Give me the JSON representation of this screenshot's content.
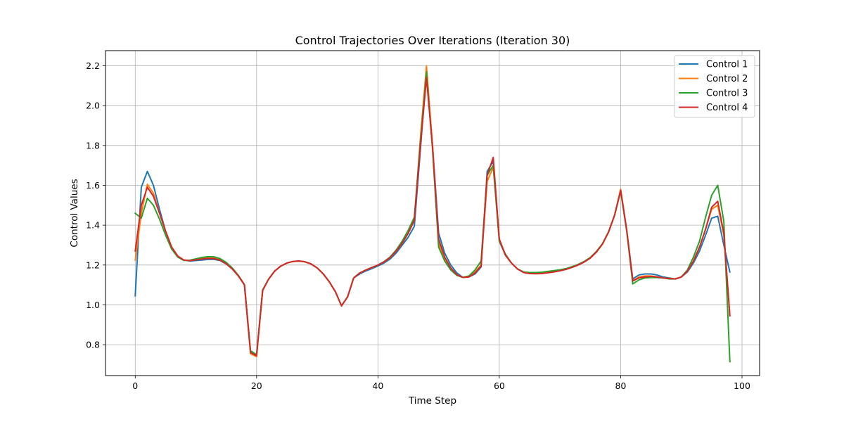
{
  "chart_data": {
    "type": "line",
    "title": "Control Trajectories Over Iterations (Iteration 30)",
    "xlabel": "Time Step",
    "ylabel": "Control Values",
    "xlim": [
      -4.9,
      102.9
    ],
    "ylim": [
      0.645,
      2.276
    ],
    "xticks": [
      0,
      20,
      40,
      60,
      80,
      100
    ],
    "yticks": [
      0.8,
      1.0,
      1.2,
      1.4,
      1.6,
      1.8,
      2.0,
      2.2
    ],
    "xtick_labels": [
      "0",
      "20",
      "40",
      "60",
      "80",
      "100"
    ],
    "ytick_labels": [
      "0.8",
      "1.0",
      "1.2",
      "1.4",
      "1.6",
      "1.8",
      "2.0",
      "2.2"
    ],
    "grid": true,
    "legend": "top-right",
    "series": [
      {
        "name": "Control 1",
        "color": "#1f77b4",
        "values": [
          1.045,
          1.59,
          1.67,
          1.6,
          1.48,
          1.37,
          1.29,
          1.245,
          1.225,
          1.22,
          1.222,
          1.225,
          1.228,
          1.228,
          1.222,
          1.205,
          1.18,
          1.145,
          1.1,
          0.765,
          0.75,
          1.075,
          1.13,
          1.17,
          1.195,
          1.21,
          1.218,
          1.22,
          1.216,
          1.205,
          1.185,
          1.155,
          1.115,
          1.065,
          0.995,
          1.04,
          1.135,
          1.155,
          1.17,
          1.182,
          1.195,
          1.21,
          1.23,
          1.26,
          1.3,
          1.34,
          1.395,
          1.78,
          2.17,
          1.8,
          1.36,
          1.26,
          1.2,
          1.16,
          1.138,
          1.14,
          1.155,
          1.19,
          1.67,
          1.72,
          1.32,
          1.25,
          1.21,
          1.18,
          1.165,
          1.16,
          1.16,
          1.162,
          1.165,
          1.168,
          1.173,
          1.18,
          1.19,
          1.2,
          1.215,
          1.235,
          1.265,
          1.305,
          1.365,
          1.45,
          1.575,
          1.375,
          1.13,
          1.15,
          1.155,
          1.155,
          1.15,
          1.14,
          1.135,
          1.13,
          1.14,
          1.165,
          1.21,
          1.27,
          1.35,
          1.435,
          1.445,
          1.3,
          1.165
        ]
      },
      {
        "name": "Control 2",
        "color": "#ff7f0e",
        "values": [
          1.225,
          1.46,
          1.605,
          1.56,
          1.46,
          1.37,
          1.29,
          1.245,
          1.225,
          1.222,
          1.227,
          1.232,
          1.236,
          1.235,
          1.226,
          1.208,
          1.18,
          1.145,
          1.1,
          0.755,
          0.74,
          1.072,
          1.13,
          1.17,
          1.195,
          1.21,
          1.218,
          1.22,
          1.216,
          1.205,
          1.185,
          1.155,
          1.115,
          1.065,
          0.995,
          1.04,
          1.135,
          1.16,
          1.175,
          1.187,
          1.2,
          1.215,
          1.237,
          1.27,
          1.31,
          1.36,
          1.425,
          1.84,
          2.2,
          1.8,
          1.31,
          1.23,
          1.18,
          1.15,
          1.138,
          1.14,
          1.165,
          1.2,
          1.62,
          1.69,
          1.33,
          1.25,
          1.21,
          1.18,
          1.163,
          1.158,
          1.157,
          1.158,
          1.162,
          1.166,
          1.172,
          1.18,
          1.19,
          1.2,
          1.215,
          1.235,
          1.265,
          1.305,
          1.365,
          1.45,
          1.58,
          1.375,
          1.12,
          1.14,
          1.145,
          1.145,
          1.14,
          1.135,
          1.132,
          1.13,
          1.14,
          1.17,
          1.22,
          1.29,
          1.38,
          1.48,
          1.5,
          1.35,
          0.95
        ]
      },
      {
        "name": "Control 3",
        "color": "#2ca02c",
        "values": [
          1.46,
          1.435,
          1.535,
          1.5,
          1.43,
          1.35,
          1.28,
          1.24,
          1.223,
          1.224,
          1.231,
          1.238,
          1.242,
          1.241,
          1.232,
          1.213,
          1.185,
          1.148,
          1.102,
          0.77,
          0.75,
          1.075,
          1.13,
          1.17,
          1.195,
          1.21,
          1.218,
          1.22,
          1.216,
          1.205,
          1.185,
          1.155,
          1.115,
          1.065,
          0.995,
          1.04,
          1.135,
          1.16,
          1.175,
          1.188,
          1.2,
          1.217,
          1.24,
          1.275,
          1.32,
          1.375,
          1.44,
          1.82,
          2.17,
          1.78,
          1.29,
          1.22,
          1.175,
          1.148,
          1.138,
          1.145,
          1.175,
          1.22,
          1.65,
          1.7,
          1.32,
          1.255,
          1.21,
          1.18,
          1.165,
          1.162,
          1.162,
          1.164,
          1.168,
          1.172,
          1.176,
          1.182,
          1.192,
          1.203,
          1.218,
          1.238,
          1.268,
          1.307,
          1.366,
          1.45,
          1.57,
          1.37,
          1.105,
          1.125,
          1.135,
          1.137,
          1.137,
          1.135,
          1.13,
          1.13,
          1.14,
          1.175,
          1.24,
          1.32,
          1.44,
          1.55,
          1.6,
          1.42,
          0.715
        ]
      },
      {
        "name": "Control 4",
        "color": "#d62728",
        "values": [
          1.27,
          1.5,
          1.59,
          1.545,
          1.46,
          1.37,
          1.29,
          1.245,
          1.225,
          1.222,
          1.226,
          1.23,
          1.233,
          1.232,
          1.224,
          1.206,
          1.18,
          1.145,
          1.1,
          0.76,
          0.745,
          1.072,
          1.13,
          1.17,
          1.195,
          1.21,
          1.218,
          1.22,
          1.216,
          1.205,
          1.185,
          1.155,
          1.115,
          1.065,
          0.995,
          1.04,
          1.135,
          1.16,
          1.175,
          1.187,
          1.2,
          1.215,
          1.237,
          1.27,
          1.31,
          1.36,
          1.425,
          1.8,
          2.14,
          1.79,
          1.33,
          1.24,
          1.185,
          1.152,
          1.138,
          1.14,
          1.16,
          1.195,
          1.65,
          1.74,
          1.33,
          1.25,
          1.21,
          1.18,
          1.162,
          1.157,
          1.156,
          1.157,
          1.161,
          1.165,
          1.171,
          1.178,
          1.188,
          1.2,
          1.215,
          1.235,
          1.265,
          1.305,
          1.365,
          1.45,
          1.575,
          1.375,
          1.12,
          1.135,
          1.14,
          1.143,
          1.14,
          1.135,
          1.132,
          1.13,
          1.14,
          1.17,
          1.22,
          1.29,
          1.38,
          1.49,
          1.52,
          1.36,
          0.945
        ]
      }
    ]
  }
}
